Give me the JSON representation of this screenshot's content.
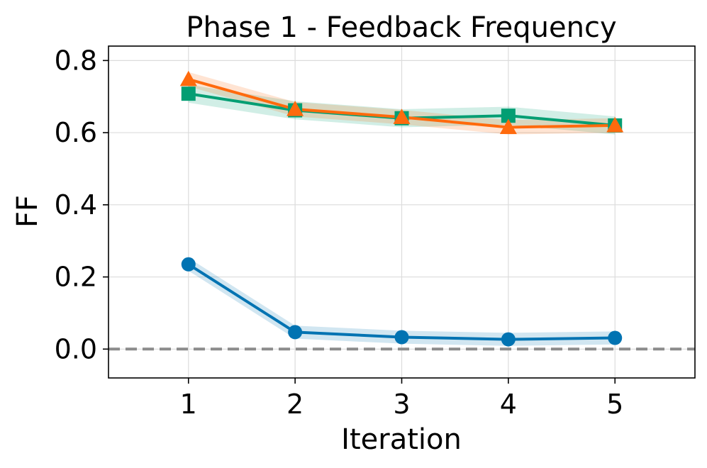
{
  "chart_data": {
    "type": "line",
    "title": "Phase 1 - Feedback Frequency",
    "xlabel": "Iteration",
    "ylabel": "FF",
    "x": [
      1,
      2,
      3,
      4,
      5
    ],
    "xlim": [
      0.25,
      5.75
    ],
    "ylim": [
      -0.08,
      0.84
    ],
    "xticks": [
      "1",
      "2",
      "3",
      "4",
      "5"
    ],
    "yticks": [
      "0.0",
      "0.2",
      "0.4",
      "0.6",
      "0.8"
    ],
    "grid": true,
    "reference_line": {
      "y": 0.0,
      "style": "dashed",
      "color": "#8c8c8c"
    },
    "series": [
      {
        "name": "series-blue",
        "color": "#0173b2",
        "marker": "circle",
        "values": [
          0.235,
          0.047,
          0.033,
          0.027,
          0.031
        ],
        "band": 0.018
      },
      {
        "name": "series-green",
        "color": "#029e73",
        "marker": "square",
        "values": [
          0.708,
          0.662,
          0.64,
          0.647,
          0.62
        ],
        "band": 0.025
      },
      {
        "name": "series-orange",
        "color": "#ff6a0d",
        "marker": "triangle",
        "values": [
          0.748,
          0.665,
          0.643,
          0.615,
          0.62
        ],
        "band": 0.02
      }
    ]
  }
}
